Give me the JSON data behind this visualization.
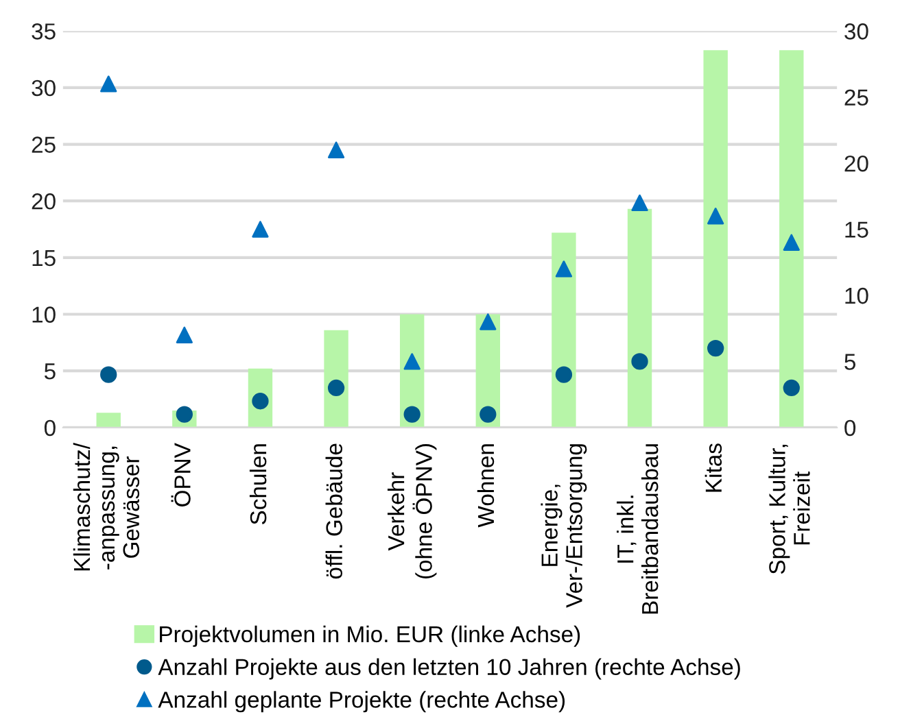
{
  "chart_data": {
    "type": "bar",
    "categories": [
      "Klimaschutz/\n-anpassung,\nGewässer",
      "ÖPNV",
      "Schulen",
      "öffl. Gebäude",
      "Verkehr\n(ohne ÖPNV)",
      "Wohnen",
      "Energie,\nVer-/Entsorgung",
      "IT, inkl.\nBreitbandausbau",
      "Kitas",
      "Sport, Kultur,\nFreizeit"
    ],
    "series": [
      {
        "name": "Projektvolumen in Mio. EUR (linke Achse)",
        "color": "#b7f5a8",
        "values": [
          1.3,
          1.5,
          5.2,
          8.6,
          10.0,
          10.0,
          17.2,
          19.3,
          33.3,
          33.3
        ]
      },
      {
        "name": "Anzahl Projekte aus den letzten 10 Jahren (rechte Achse)",
        "type": "scatter",
        "axis": "y2",
        "marker": "circle",
        "color": "#005a8c",
        "values": [
          4,
          1,
          2,
          3,
          1,
          1,
          4,
          5,
          6,
          3
        ]
      },
      {
        "name": "Anzahl geplante Projekte (rechte Achse)",
        "type": "scatter",
        "axis": "y2",
        "marker": "triangle",
        "color": "#0070c0",
        "values": [
          26,
          7,
          15,
          21,
          5,
          8,
          12,
          17,
          16,
          14
        ]
      }
    ],
    "ylim": [
      0,
      35
    ],
    "yticks": [
      0,
      5,
      10,
      15,
      20,
      25,
      30,
      35
    ],
    "y2lim": [
      0,
      30
    ],
    "y2ticks": [
      0,
      5,
      10,
      15,
      20,
      25,
      30
    ],
    "grid": "y",
    "legend": "bottom"
  }
}
